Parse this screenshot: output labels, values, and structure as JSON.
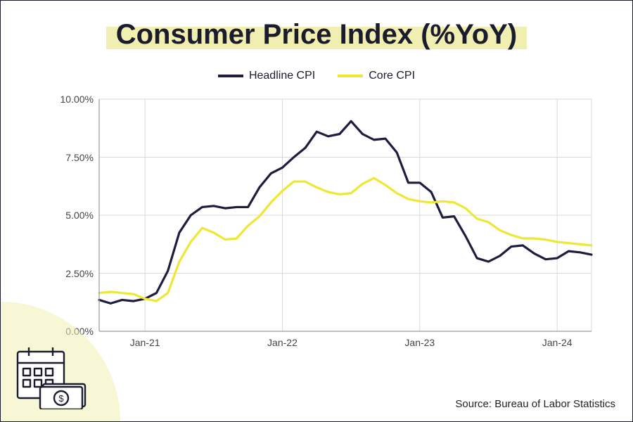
{
  "title": "Consumer Price Index (%YoY)",
  "source": "Source: Bureau of Labor Statistics",
  "colors": {
    "title_highlight": "#f1eeb2",
    "frame_border": "#1b1b2e",
    "grid": "#d9d9d9",
    "axis": "#9a9a9a",
    "tick_text": "#444444",
    "background": "#ffffff"
  },
  "chart": {
    "type": "line",
    "y_axis": {
      "min": 0.0,
      "max": 10.0,
      "ticks": [
        0.0,
        2.5,
        5.0,
        7.5,
        10.0
      ],
      "tick_labels": [
        "0.00%",
        "2.50%",
        "5.00%",
        "7.50%",
        "10.00%"
      ],
      "label_fontsize": 14
    },
    "x_axis": {
      "n_points": 44,
      "tick_indices": [
        4,
        16,
        28,
        40
      ],
      "tick_labels": [
        "Jan-21",
        "Jan-22",
        "Jan-23",
        "Jan-24"
      ],
      "label_fontsize": 14
    },
    "legend": [
      {
        "label": "Headline CPI",
        "color": "#1f1c3d",
        "width": 4
      },
      {
        "label": "Core CPI",
        "color": "#eee735",
        "width": 4
      }
    ],
    "series": [
      {
        "name": "Headline CPI",
        "color": "#1f1c3d",
        "width": 3.2,
        "values": [
          1.35,
          1.2,
          1.35,
          1.3,
          1.4,
          1.65,
          2.6,
          4.25,
          5.0,
          5.35,
          5.4,
          5.3,
          5.35,
          5.35,
          6.2,
          6.8,
          7.05,
          7.5,
          7.9,
          8.6,
          8.4,
          8.5,
          9.05,
          8.5,
          8.25,
          8.3,
          7.7,
          6.4,
          6.4,
          6.0,
          4.9,
          4.95,
          4.1,
          3.15,
          3.0,
          3.25,
          3.65,
          3.7,
          3.35,
          3.1,
          3.15,
          3.45,
          3.4,
          3.3
        ]
      },
      {
        "name": "Core CPI",
        "color": "#eee735",
        "width": 3.2,
        "values": [
          1.65,
          1.7,
          1.65,
          1.6,
          1.4,
          1.3,
          1.65,
          3.0,
          3.85,
          4.45,
          4.25,
          3.95,
          4.0,
          4.55,
          4.95,
          5.55,
          6.05,
          6.45,
          6.45,
          6.2,
          6.0,
          5.9,
          5.95,
          6.35,
          6.6,
          6.3,
          5.95,
          5.7,
          5.6,
          5.55,
          5.6,
          5.55,
          5.3,
          4.85,
          4.7,
          4.35,
          4.15,
          4.0,
          4.0,
          3.95,
          3.85,
          3.8,
          3.75,
          3.7
        ]
      }
    ]
  }
}
